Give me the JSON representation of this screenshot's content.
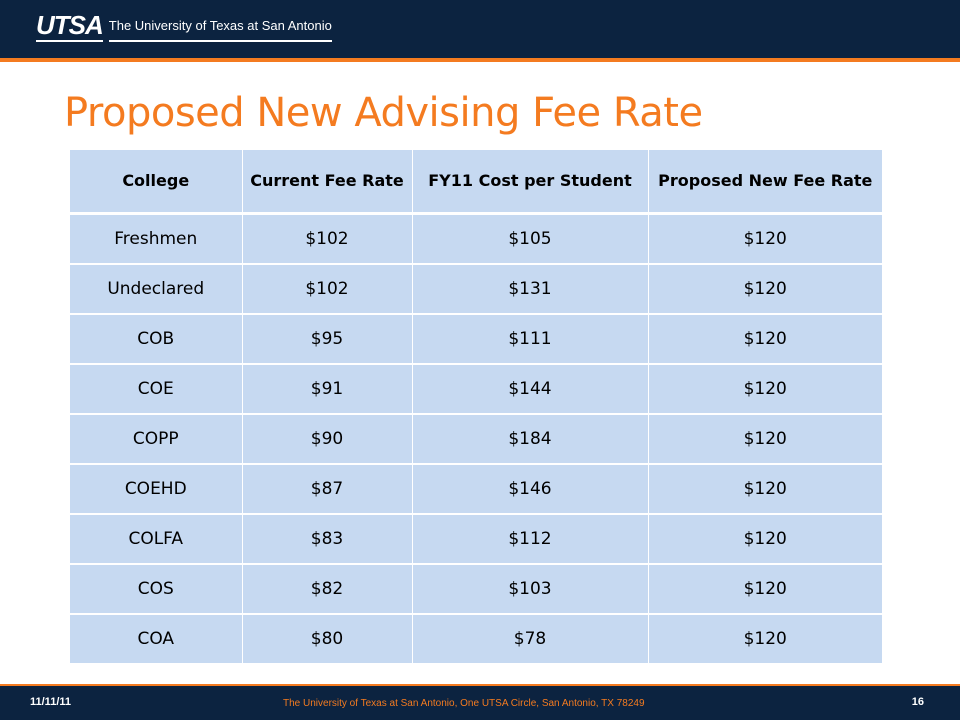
{
  "header": {
    "logo_mark": "UTSA",
    "logo_text": "The University of Texas at San Antonio"
  },
  "slide": {
    "title": "Proposed New Advising Fee Rate"
  },
  "table": {
    "headers": [
      "College",
      "Current Fee Rate",
      "FY11 Cost per Student",
      "Proposed New Fee Rate"
    ],
    "rows": [
      [
        "Freshmen",
        "$102",
        "$105",
        "$120"
      ],
      [
        "Undeclared",
        "$102",
        "$131",
        "$120"
      ],
      [
        "COB",
        "$95",
        "$111",
        "$120"
      ],
      [
        "COE",
        "$91",
        "$144",
        "$120"
      ],
      [
        "COPP",
        "$90",
        "$184",
        "$120"
      ],
      [
        "COEHD",
        "$87",
        "$146",
        "$120"
      ],
      [
        "COLFA",
        "$83",
        "$112",
        "$120"
      ],
      [
        "COS",
        "$82",
        "$103",
        "$120"
      ],
      [
        "COA",
        "$80",
        "$78",
        "$120"
      ]
    ]
  },
  "footer": {
    "date": "11/11/11",
    "address": "The University of Texas at San Antonio, One UTSA Circle, San Antonio, TX 78249",
    "page": "16"
  },
  "colors": {
    "navy": "#0c2340",
    "orange": "#f47b20",
    "table_fill": "#c6d9f1"
  }
}
